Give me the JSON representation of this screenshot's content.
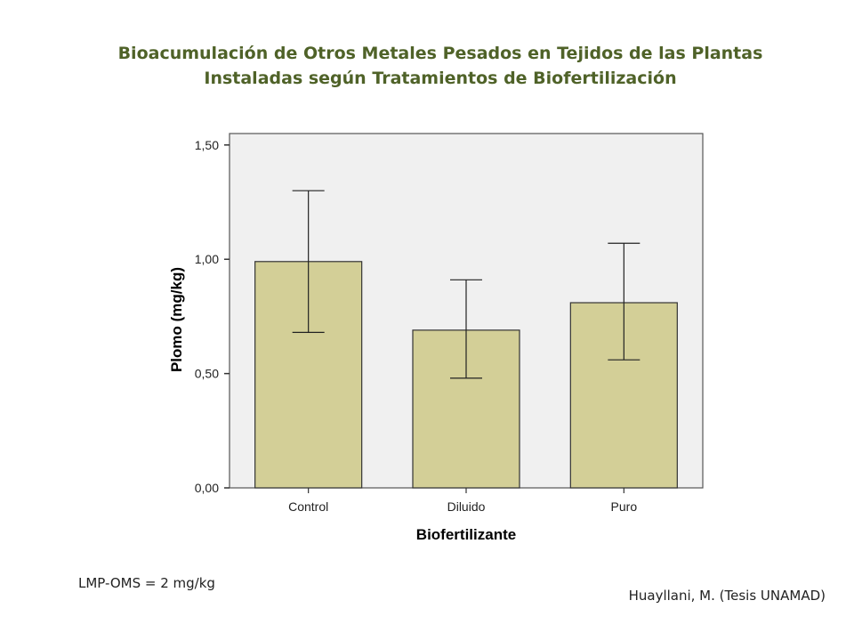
{
  "chart_data": {
    "type": "bar",
    "title": "Bioacumulación de Otros Metales Pesados en Tejidos de las Plantas Instaladas según Tratamientos de Biofertilización",
    "title_lines": [
      "Bioacumulación de Otros Metales Pesados en Tejidos de las Plantas",
      "Instaladas según Tratamientos de Biofertilización"
    ],
    "xlabel": "Biofertilizante",
    "ylabel": "Plomo (mg/kg)",
    "categories": [
      "Control",
      "Diluido",
      "Puro"
    ],
    "values": [
      0.99,
      0.69,
      0.81
    ],
    "error_upper": [
      1.3,
      0.91,
      1.07
    ],
    "error_lower": [
      0.68,
      0.48,
      0.56
    ],
    "ylim": [
      0,
      1.55
    ],
    "yticks": [
      "0,00",
      "0,50",
      "1,00",
      "1,50"
    ],
    "ytick_values": [
      0,
      0.5,
      1.0,
      1.5
    ],
    "grid": false,
    "colors": {
      "bar": "#d3cf97",
      "plot_bg": "#f0f0f0",
      "title": "#4f6228"
    }
  },
  "footer": {
    "note": "LMP-OMS = 2 mg/kg",
    "credit": "Huayllani, M. (Tesis UNAMAD)"
  }
}
